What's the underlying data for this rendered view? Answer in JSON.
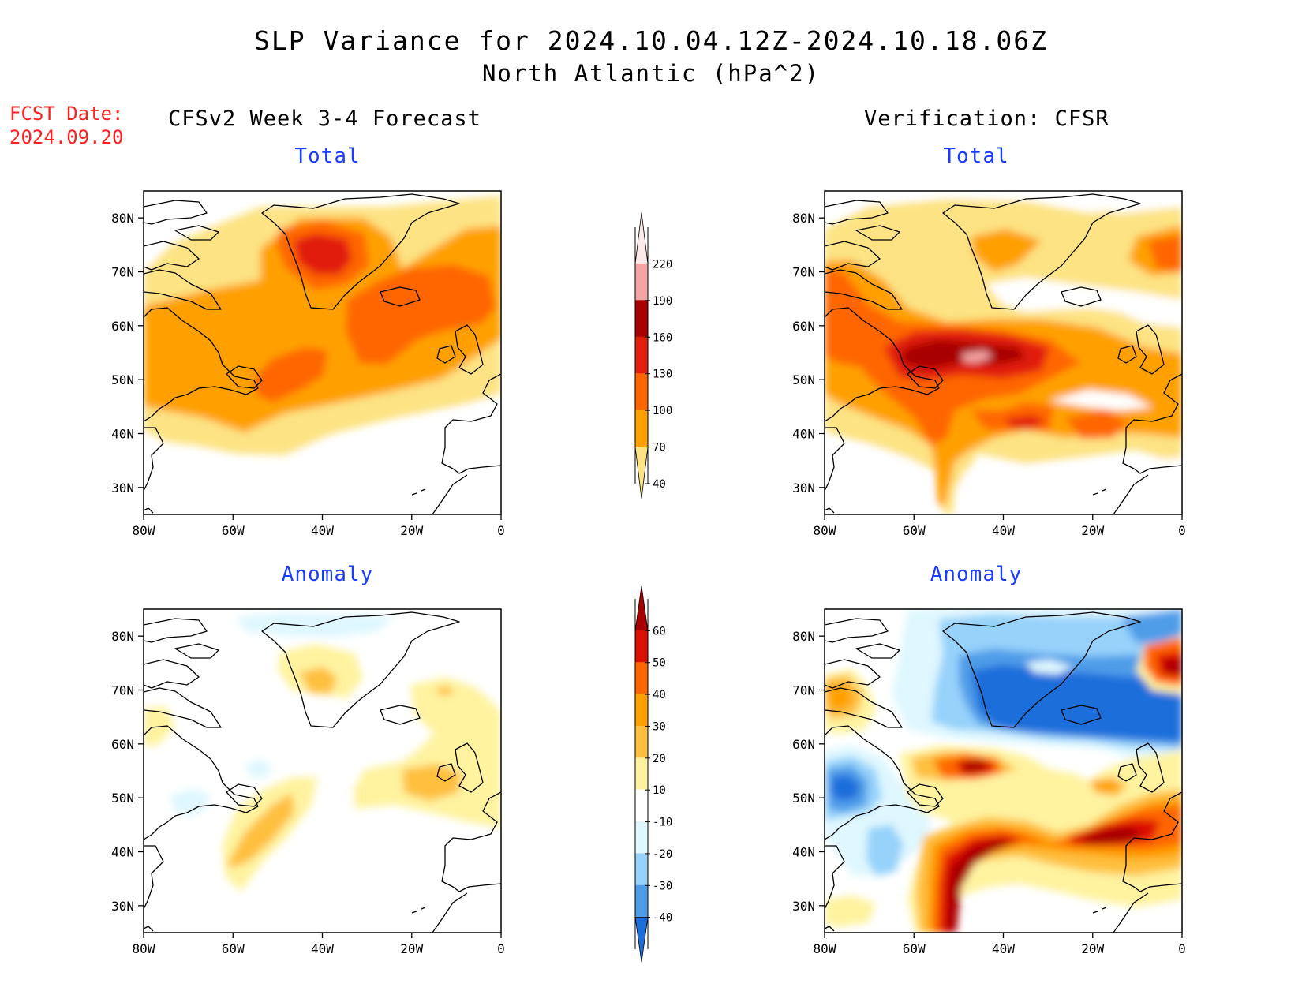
{
  "title": {
    "line1": "SLP Variance for 2024.10.04.12Z-2024.10.18.06Z",
    "line2": "North Atlantic (hPa^2)"
  },
  "fcst_date": {
    "label": "FCST Date:",
    "value": "2024.09.20"
  },
  "columns": {
    "left": "CFSv2 Week 3-4 Forecast",
    "right": "Verification: CFSR"
  },
  "panels": [
    {
      "id": "forecast-total",
      "title": "Total"
    },
    {
      "id": "verification-total",
      "title": "Total"
    },
    {
      "id": "forecast-anomaly",
      "title": "Anomaly"
    },
    {
      "id": "verification-anomaly",
      "title": "Anomaly"
    }
  ],
  "axes": {
    "lat_ticks": [
      "80N",
      "70N",
      "60N",
      "50N",
      "40N",
      "30N"
    ],
    "lon_ticks": [
      "80W",
      "60W",
      "40W",
      "20W",
      "0"
    ],
    "lat_range": [
      25,
      85
    ],
    "lon_range": [
      -80,
      0
    ]
  },
  "colorbars": {
    "total": {
      "ticks": [
        "220",
        "190",
        "160",
        "130",
        "100",
        "70",
        "40"
      ],
      "colors": [
        "#fde9e9",
        "#f3a4a4",
        "#a80000",
        "#e11f0a",
        "#ff6600",
        "#ffa000",
        "#fde383"
      ]
    },
    "anomaly": {
      "ticks": [
        "60",
        "50",
        "40",
        "30",
        "20",
        "10",
        "-10",
        "-20",
        "-30",
        "-40"
      ],
      "colors": [
        "#a80000",
        "#dd1100",
        "#ff6600",
        "#ffa000",
        "#ffc040",
        "#fff3a0",
        "#ffffff",
        "#dff7ff",
        "#96d2fa",
        "#4f9de8",
        "#1c6edb"
      ]
    }
  }
}
